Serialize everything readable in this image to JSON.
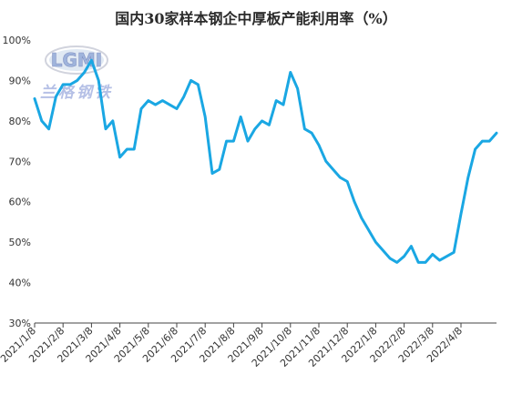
{
  "chart_data": {
    "type": "line",
    "title": "国内30家样本钢企中厚板产能利用率（%）",
    "xlabel": "",
    "ylabel": "",
    "ylim": [
      30,
      100
    ],
    "yticks": [
      30,
      40,
      50,
      60,
      70,
      80,
      90,
      100
    ],
    "ytick_labels": [
      "30%",
      "40%",
      "50%",
      "60%",
      "70%",
      "80%",
      "90%",
      "100%"
    ],
    "xtick_labels": [
      "2021/1/8",
      "2021/2/8",
      "2021/3/8",
      "2021/4/8",
      "2021/5/8",
      "2021/6/8",
      "2021/7/8",
      "2021/8/8",
      "2021/9/8",
      "2021/10/8",
      "2021/11/8",
      "2021/12/8",
      "2022/1/8",
      "2022/2/8",
      "2022/3/8",
      "2022/4/8"
    ],
    "xtick_positions": [
      0,
      4,
      8,
      12,
      16,
      20,
      24,
      28,
      32,
      36,
      40,
      44,
      48,
      52,
      56,
      60
    ],
    "grid": false,
    "legend": "none",
    "series": [
      {
        "color": "#1aa7e3",
        "values": [
          85.5,
          80,
          78,
          86,
          89,
          89,
          90,
          92,
          95,
          90,
          78,
          80,
          71,
          73,
          73,
          83,
          85,
          84,
          85,
          84,
          83,
          86,
          90,
          89,
          81,
          67,
          68,
          75,
          75,
          81,
          75,
          78,
          80,
          79,
          85,
          84,
          92,
          88,
          78,
          77,
          74,
          70,
          68,
          66,
          65,
          60,
          56,
          53,
          50,
          48,
          46,
          45,
          46.5,
          49,
          45,
          45,
          47,
          45.5,
          46.5,
          47.5,
          57,
          66,
          73,
          75,
          75,
          77
        ]
      }
    ]
  },
  "watermark": {
    "logo_text": "LGMI",
    "company_text": "兰格钢铁"
  }
}
